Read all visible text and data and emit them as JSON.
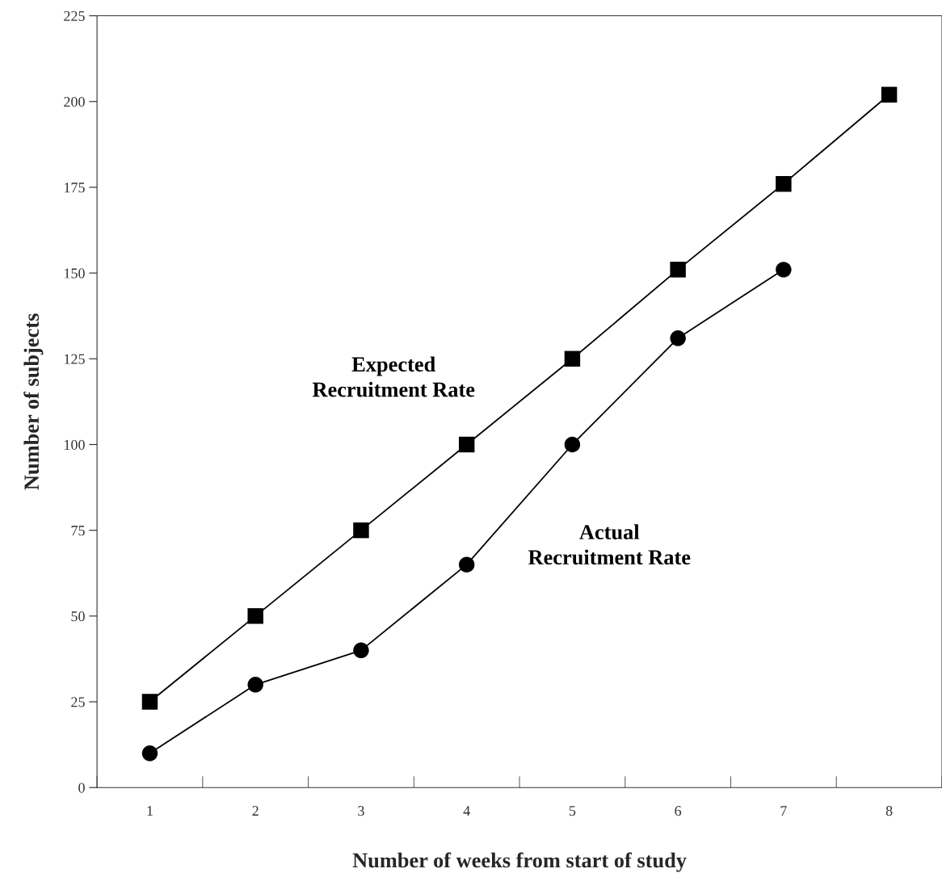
{
  "chart_data": {
    "type": "line",
    "xlabel": "Number of weeks from start of study",
    "ylabel": "Number of subjects",
    "x": [
      1,
      2,
      3,
      4,
      5,
      6,
      7,
      8
    ],
    "series": [
      {
        "name": "Expected\nRecruitment Rate",
        "color": "#000000",
        "marker": "square",
        "values": [
          25,
          50,
          75,
          100,
          125,
          151,
          176,
          202
        ]
      },
      {
        "name": "Actual\nRecruitment Rate",
        "color": "#000000",
        "marker": "circle",
        "values": [
          10,
          30,
          40,
          65,
          100,
          131,
          151,
          null
        ]
      }
    ],
    "xlim": [
      0.5,
      8.5
    ],
    "xticks": [
      1,
      2,
      3,
      4,
      5,
      6,
      7,
      8,
      {
        "value": 0.5,
        "label": null
      },
      {
        "value": 1.5,
        "label": null
      },
      {
        "value": 2.5,
        "label": null
      },
      {
        "value": 3.5,
        "label": null
      },
      {
        "value": 4.5,
        "label": null
      },
      {
        "value": 5.5,
        "label": null
      },
      {
        "value": 6.5,
        "label": null
      },
      {
        "value": 7.5,
        "label": null
      },
      {
        "value": 8.5,
        "label": null
      }
    ],
    "ylim": [
      0,
      225
    ],
    "yticks": [
      0,
      25,
      50,
      75,
      100,
      125,
      150,
      175,
      200,
      225
    ],
    "grid": false,
    "legend": false,
    "line_style": "solid"
  }
}
